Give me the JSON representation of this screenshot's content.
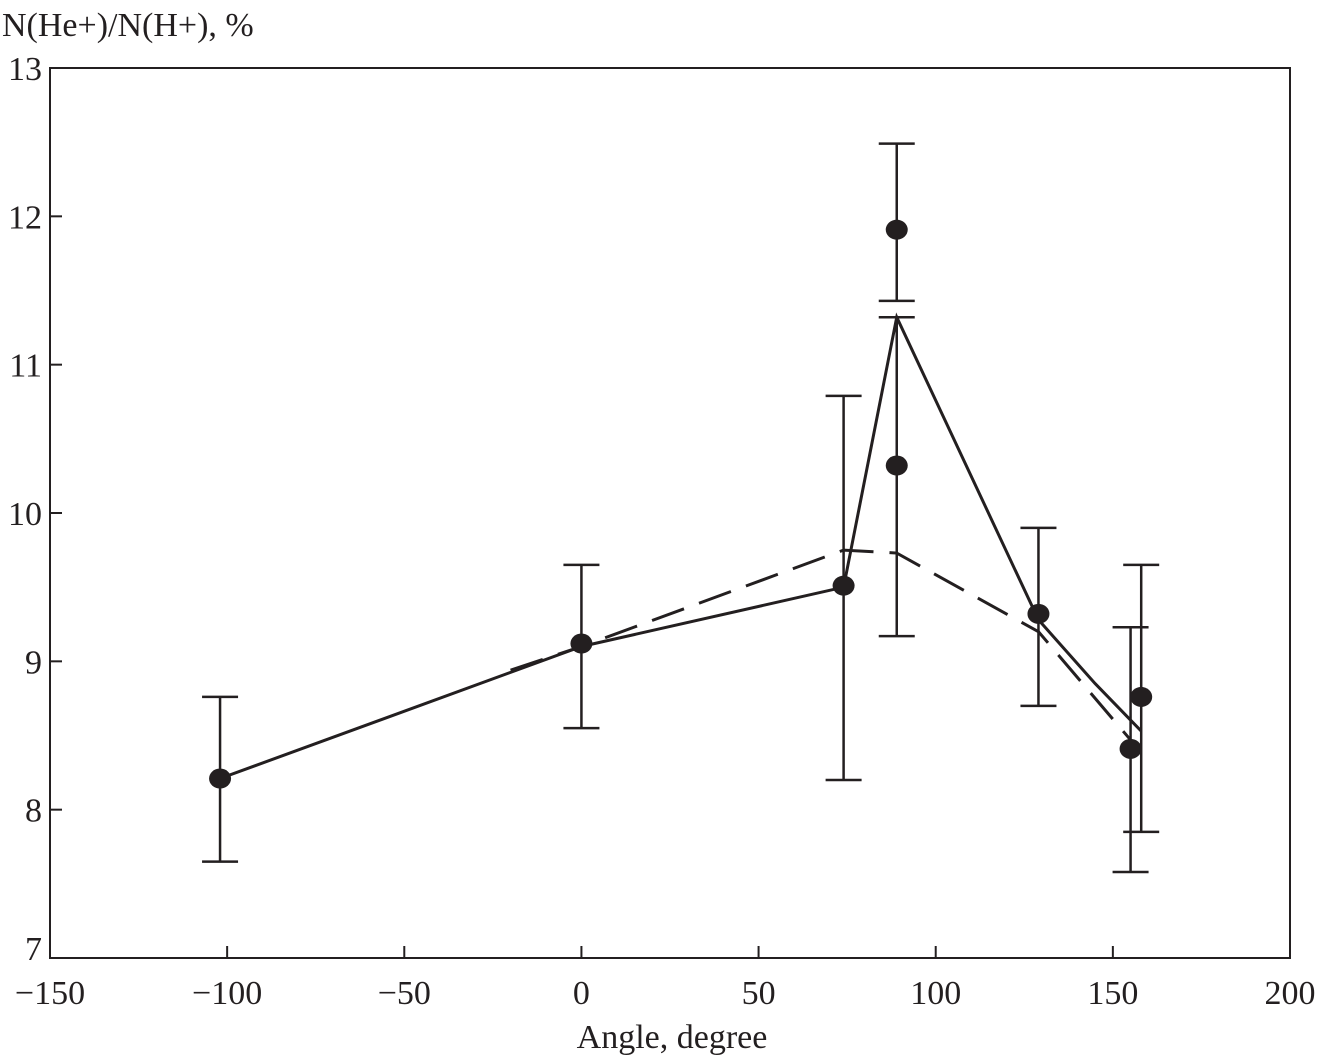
{
  "chart_data": {
    "type": "scatter",
    "title": "",
    "ylabel": "N(He+)/N(H+), %",
    "xlabel": "Angle, degree",
    "xlim": [
      -150,
      200
    ],
    "ylim": [
      7,
      13
    ],
    "xticks": [
      -150,
      -100,
      -50,
      0,
      50,
      100,
      150,
      200
    ],
    "xtick_labels": [
      "−150",
      "−100",
      "−50",
      "0",
      "50",
      "100",
      "150",
      "200"
    ],
    "yticks": [
      7,
      8,
      9,
      10,
      11,
      12,
      13
    ],
    "ytick_labels": [
      "7",
      "8",
      "9",
      "10",
      "11",
      "12",
      "13"
    ],
    "grid": false,
    "points": [
      {
        "x": -102,
        "y": 8.21,
        "err_low": 7.65,
        "err_high": 8.76
      },
      {
        "x": 0,
        "y": 9.12,
        "err_low": 8.55,
        "err_high": 9.65
      },
      {
        "x": 74,
        "y": 9.51,
        "err_low": 8.2,
        "err_high": 10.79
      },
      {
        "x": 89,
        "y": 11.91,
        "err_low": 11.43,
        "err_high": 12.49
      },
      {
        "x": 89,
        "y": 10.32,
        "err_low": 9.17,
        "err_high": 11.32
      },
      {
        "x": 129,
        "y": 9.32,
        "err_low": 8.7,
        "err_high": 9.9
      },
      {
        "x": 155,
        "y": 8.41,
        "err_low": 7.58,
        "err_high": 9.23
      },
      {
        "x": 158,
        "y": 8.76,
        "err_low": 7.85,
        "err_high": 9.65
      }
    ],
    "series": [
      {
        "name": "solid",
        "style": "solid",
        "x": [
          -102,
          0,
          74,
          89,
          129,
          145,
          158
        ],
        "y": [
          8.21,
          9.1,
          9.5,
          11.32,
          9.28,
          8.85,
          8.53
        ]
      },
      {
        "name": "dashed",
        "style": "dashed",
        "x": [
          -20,
          0,
          74,
          89,
          129,
          155
        ],
        "y": [
          8.94,
          9.1,
          9.75,
          9.73,
          9.2,
          8.47
        ]
      }
    ],
    "color": "#231f20"
  }
}
